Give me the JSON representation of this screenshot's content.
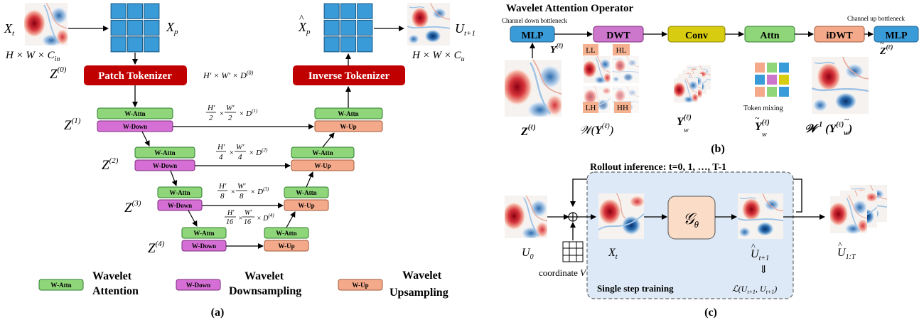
{
  "panel_a": {
    "caption": "(a)",
    "xt": "X_t",
    "xt_dims": "H × W × C_in",
    "xp": "X_p",
    "xp_hat": "X̂_p",
    "ut1": "U_t+1",
    "ut1_dims": "H × W × C_u",
    "patch_tokenizer": "Patch Tokenizer",
    "inverse_tokenizer": "Inverse Tokenizer",
    "z0": "Z^(0)",
    "top_dims": "H′ × W′ × D^(0)",
    "levels": [
      {
        "z": "Z^(1)",
        "frac_num_h": "H′",
        "frac_num_w": "W′",
        "den": "2",
        "d": "D^(1)"
      },
      {
        "z": "Z^(2)",
        "frac_num_h": "H′",
        "frac_num_w": "W′",
        "den": "4",
        "d": "D^(2)"
      },
      {
        "z": "Z^(3)",
        "frac_num_h": "H′",
        "frac_num_w": "W′",
        "den": "8",
        "d": "D^(3)"
      },
      {
        "z": "Z^(4)",
        "frac_num_h": "H′",
        "frac_num_w": "W′",
        "den": "16",
        "d": "D^(4)"
      }
    ],
    "wattn": "W-Attn",
    "wdown": "W-Down",
    "wup": "W-Up",
    "legend": [
      {
        "box": "W-Attn",
        "line1": "Wavelet",
        "line2": "Attention",
        "color": "#8fd67a"
      },
      {
        "box": "W-Down",
        "line1": "Wavelet",
        "line2": "Downsampling",
        "color": "#d56fd5"
      },
      {
        "box": "W-Up",
        "line1": "Wavelet",
        "line2": "Upsampling",
        "color": "#f4a98a"
      }
    ]
  },
  "panel_b": {
    "title": "Wavelet Attention Operator",
    "caption": "(b)",
    "down_note": "Channel down bottleneck",
    "up_note": "Channel up bottleneck",
    "blocks": [
      "MLP",
      "DWT",
      "Conv",
      "Attn",
      "iDWT",
      "MLP"
    ],
    "y_label": "Y^(ℓ)",
    "z_tilde": "Z̃^(ℓ)",
    "subbands": [
      "LL",
      "HL",
      "LH",
      "HH"
    ],
    "token_mixing": "Token mixing",
    "bottom_labels": [
      "Z^(ℓ)",
      "W(Y^(ℓ))",
      "Y_w^(ℓ)",
      "Ỹ_w^(ℓ)",
      "W^-1(Ỹ_w^(ℓ))"
    ]
  },
  "panel_c": {
    "caption": "(c)",
    "rollout": "Rollout inference:   t=0, 1, …, T-1",
    "u0": "U_0",
    "coord": "coordinate V",
    "xt": "X_t",
    "g": "G_θ",
    "ut1_hat": "Û_t+1",
    "loss": "L(Û_t+1, U_t+1)",
    "single_step": "Single step training",
    "out": "Û_1:T"
  },
  "colors": {
    "dark_red": "#c00000",
    "green": "#8fd67a",
    "magenta": "#d56fd5",
    "salmon": "#f4a98a",
    "blue": "#4aa3df",
    "purple": "#cc77cc",
    "yellow": "#d8cc10",
    "light_blue_bg": "#dde9f6",
    "g_box": "#fbdcc7"
  }
}
